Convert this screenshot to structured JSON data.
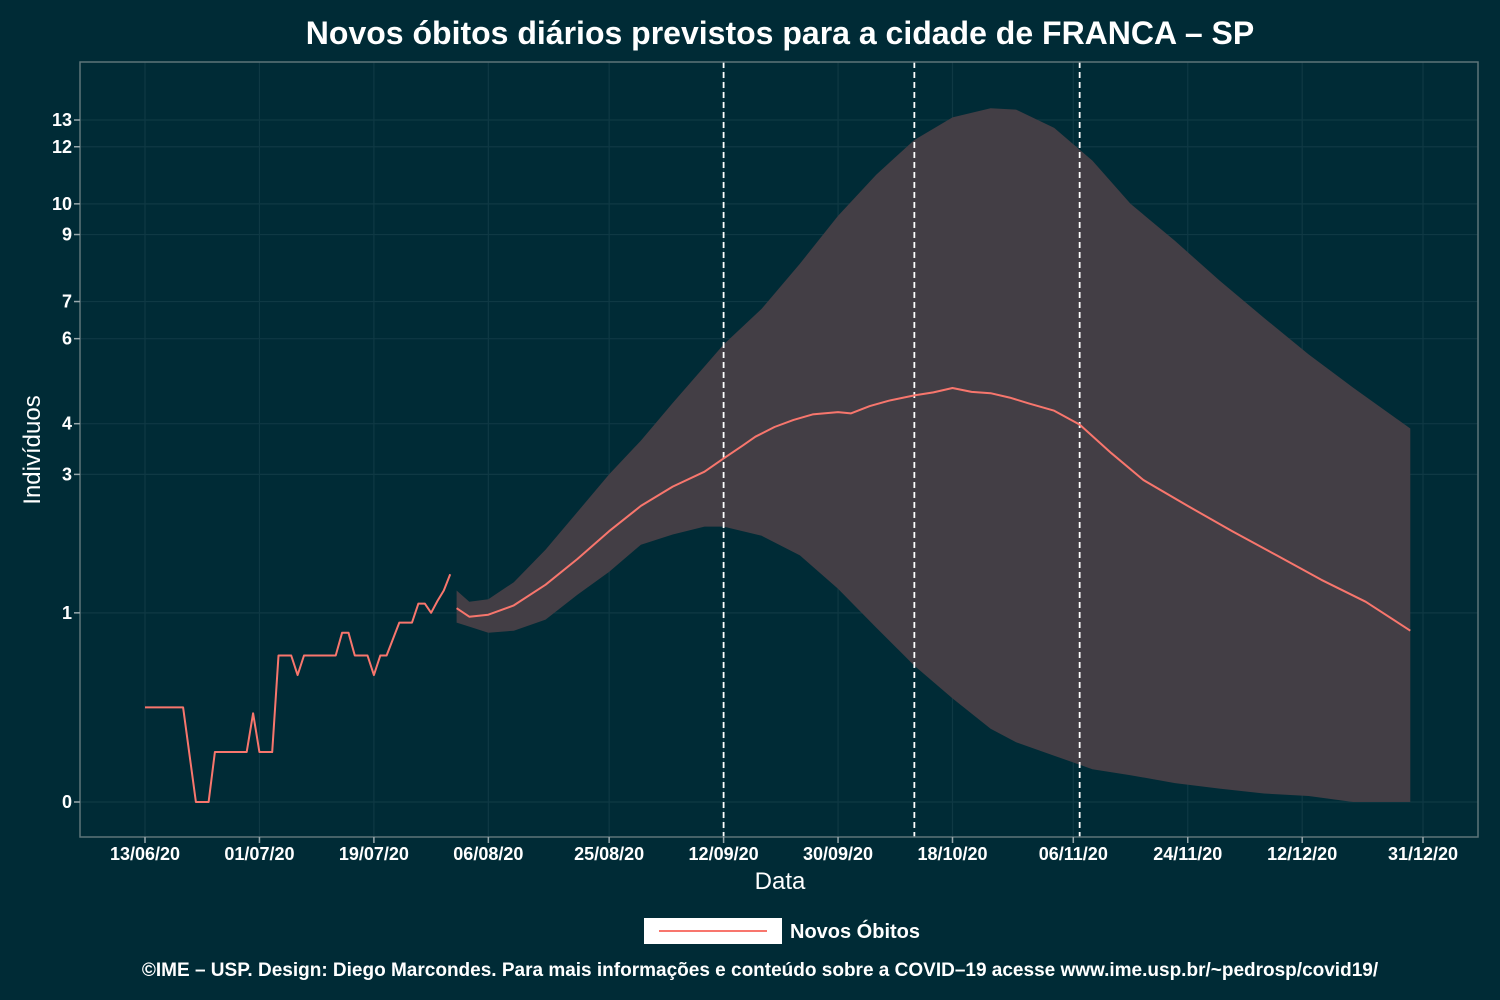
{
  "chart_data": {
    "type": "line",
    "title": "Novos óbitos diários previstos para a cidade de FRANCA – SP",
    "xlabel": "Data",
    "ylabel": "Indivíduos",
    "x_tick_labels": [
      "13/06/20",
      "01/07/20",
      "19/07/20",
      "06/08/20",
      "25/08/20",
      "12/09/20",
      "30/09/20",
      "18/10/20",
      "06/11/20",
      "24/11/20",
      "12/12/20",
      "31/12/20"
    ],
    "x_tick_dates": [
      "2020-06-13",
      "2020-07-01",
      "2020-07-19",
      "2020-08-06",
      "2020-08-25",
      "2020-09-12",
      "2020-09-30",
      "2020-10-18",
      "2020-11-06",
      "2020-11-24",
      "2020-12-12",
      "2020-12-31"
    ],
    "y_axis_scale": "sqrt",
    "y_ticks": [
      0,
      1,
      3,
      4,
      6,
      7,
      9,
      10,
      12,
      13
    ],
    "y_tick_labels": [
      "0",
      "1",
      "3",
      "4",
      "6",
      "7",
      "9",
      "10",
      "12",
      "13"
    ],
    "xlim": [
      "2020-06-03",
      "2021-01-08"
    ],
    "grid": true,
    "legend_position": "bottom",
    "vertical_reference_dates": [
      "2020-09-12",
      "2020-10-12",
      "2020-11-07"
    ],
    "colors": {
      "background": "#002b36",
      "line": "#f8766d",
      "band": "#433e45",
      "text": "#ffffff",
      "dashed": "#ffffff"
    },
    "series": [
      {
        "name": "Novos Óbitos",
        "segment": "observed",
        "x": [
          "2020-06-13",
          "2020-06-19",
          "2020-06-21",
          "2020-06-23",
          "2020-06-24",
          "2020-06-29",
          "2020-06-30",
          "2020-07-01",
          "2020-07-03",
          "2020-07-04",
          "2020-07-06",
          "2020-07-07",
          "2020-07-08",
          "2020-07-09",
          "2020-07-13",
          "2020-07-14",
          "2020-07-15",
          "2020-07-16",
          "2020-07-18",
          "2020-07-19",
          "2020-07-20",
          "2020-07-21",
          "2020-07-23",
          "2020-07-24",
          "2020-07-25",
          "2020-07-26",
          "2020-07-27",
          "2020-07-28",
          "2020-07-29",
          "2020-07-30",
          "2020-07-31"
        ],
        "y": [
          0.25,
          0.25,
          0.0,
          0.0,
          0.07,
          0.07,
          0.22,
          0.07,
          0.07,
          0.6,
          0.6,
          0.45,
          0.6,
          0.6,
          0.6,
          0.8,
          0.8,
          0.6,
          0.6,
          0.45,
          0.6,
          0.6,
          0.9,
          0.9,
          0.9,
          1.1,
          1.1,
          1.0,
          1.13,
          1.25,
          1.45
        ]
      },
      {
        "name": "Novos Óbitos",
        "segment": "predicted",
        "x": [
          "2020-08-01",
          "2020-08-03",
          "2020-08-06",
          "2020-08-10",
          "2020-08-15",
          "2020-08-20",
          "2020-08-25",
          "2020-08-30",
          "2020-09-04",
          "2020-09-09",
          "2020-09-12",
          "2020-09-15",
          "2020-09-17",
          "2020-09-20",
          "2020-09-23",
          "2020-09-26",
          "2020-09-30",
          "2020-10-02",
          "2020-10-05",
          "2020-10-08",
          "2020-10-12",
          "2020-10-15",
          "2020-10-18",
          "2020-10-21",
          "2020-10-24",
          "2020-10-27",
          "2020-10-30",
          "2020-11-03",
          "2020-11-07",
          "2020-11-12",
          "2020-11-17",
          "2020-11-24",
          "2020-12-01",
          "2020-12-08",
          "2020-12-15",
          "2020-12-22",
          "2020-12-29"
        ],
        "y": [
          1.05,
          0.96,
          0.98,
          1.08,
          1.32,
          1.65,
          2.05,
          2.45,
          2.78,
          3.05,
          3.3,
          3.55,
          3.73,
          3.93,
          4.08,
          4.2,
          4.25,
          4.22,
          4.38,
          4.5,
          4.62,
          4.69,
          4.79,
          4.7,
          4.67,
          4.57,
          4.44,
          4.28,
          3.98,
          3.4,
          2.9,
          2.45,
          2.05,
          1.7,
          1.38,
          1.12,
          0.82
        ]
      }
    ],
    "confidence_band": {
      "x": [
        "2020-08-01",
        "2020-08-03",
        "2020-08-06",
        "2020-08-10",
        "2020-08-15",
        "2020-08-20",
        "2020-08-25",
        "2020-08-30",
        "2020-09-04",
        "2020-09-09",
        "2020-09-12",
        "2020-09-18",
        "2020-09-24",
        "2020-09-30",
        "2020-10-06",
        "2020-10-12",
        "2020-10-18",
        "2020-10-24",
        "2020-10-28",
        "2020-11-03",
        "2020-11-09",
        "2020-11-15",
        "2020-11-22",
        "2020-11-29",
        "2020-12-06",
        "2020-12-13",
        "2020-12-20",
        "2020-12-29"
      ],
      "lower": [
        0.9,
        0.86,
        0.8,
        0.82,
        0.93,
        1.2,
        1.48,
        1.85,
        2.0,
        2.12,
        2.12,
        1.98,
        1.7,
        1.27,
        0.85,
        0.52,
        0.3,
        0.15,
        0.1,
        0.06,
        0.03,
        0.02,
        0.01,
        0.005,
        0.002,
        0.001,
        0.0,
        0.0
      ],
      "upper": [
        1.25,
        1.12,
        1.15,
        1.35,
        1.78,
        2.35,
        3.0,
        3.65,
        4.45,
        5.3,
        5.85,
        6.8,
        8.1,
        9.6,
        11.0,
        12.25,
        13.1,
        13.45,
        13.4,
        12.7,
        11.5,
        10.0,
        8.8,
        7.6,
        6.55,
        5.6,
        4.8,
        3.9
      ]
    },
    "legend": [
      "Novos Óbitos"
    ]
  },
  "footer": {
    "credit": "©IME – USP. Design: Diego Marcondes. Para mais informações e conteúdo sobre a COVID–19 acesse www.ime.usp.br/~pedrosp/covid19/"
  }
}
